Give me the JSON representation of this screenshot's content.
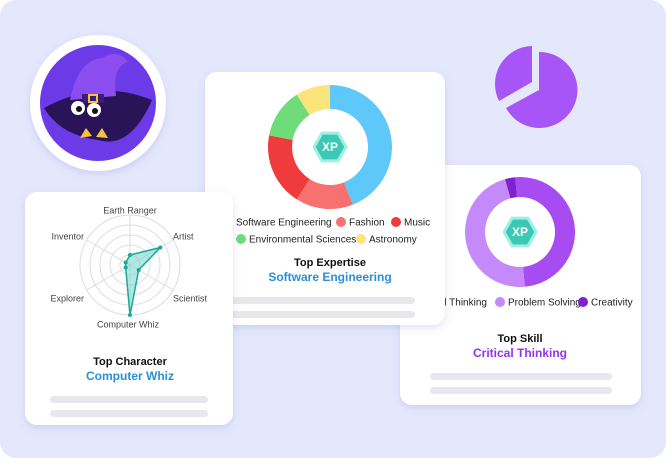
{
  "expertise": {
    "badge": "XP",
    "heading": "Top Expertise",
    "result": "Software Engineering",
    "segments": [
      {
        "name": "Software Engineering",
        "color": "#5ec8fa",
        "value": 44
      },
      {
        "name": "Fashion",
        "color": "#f87171",
        "value": 15
      },
      {
        "name": "Music",
        "color": "#ef3b3b",
        "value": 19
      },
      {
        "name": "Environmental Sciences",
        "color": "#6fdc7a",
        "value": 13
      },
      {
        "name": "Astronomy",
        "color": "#fbe57a",
        "value": 9
      }
    ]
  },
  "skill": {
    "badge": "XP",
    "heading": "Top Skill",
    "result": "Critical Thinking",
    "segments": [
      {
        "name": "Critical Thinking",
        "color": "#a64cf0",
        "value": 50
      },
      {
        "name": "Problem Solving",
        "color": "#c58af9",
        "value": 47
      },
      {
        "name": "Creativity",
        "color": "#7e22ce",
        "value": 3
      }
    ]
  },
  "character": {
    "heading": "Top Character",
    "result": "Computer Whiz",
    "rlim": [
      0,
      10
    ],
    "axes": [
      {
        "name": "Earth Ranger",
        "value": 2
      },
      {
        "name": "Artist",
        "value": 7
      },
      {
        "name": "Scientist",
        "value": 2
      },
      {
        "name": "Computer Whiz",
        "value": 10
      },
      {
        "name": "Explorer",
        "value": 1
      },
      {
        "name": "Inventor",
        "value": 1
      }
    ]
  }
}
